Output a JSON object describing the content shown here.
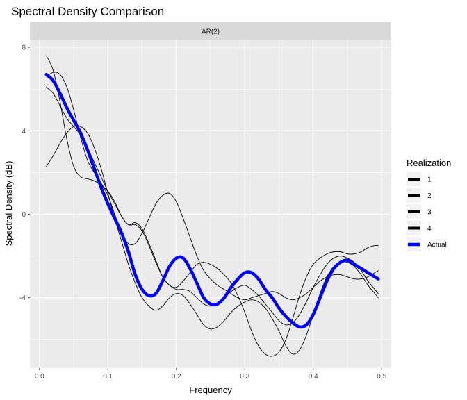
{
  "chart_data": {
    "type": "line",
    "title": "Spectral Density Comparison",
    "facet": "AR(2)",
    "xlabel": "Frequency",
    "ylabel": "Spectral Density (dB)",
    "xlim": [
      -0.014,
      0.514
    ],
    "ylim": [
      -7.37,
      8.37
    ],
    "x_ticks": [
      0.0,
      0.1,
      0.2,
      0.3,
      0.4,
      0.5
    ],
    "x_tick_labels": [
      "0.0",
      "0.1",
      "0.2",
      "0.3",
      "0.4",
      "0.5"
    ],
    "y_ticks": [
      -4,
      0,
      4,
      8
    ],
    "y_tick_labels": [
      "-4",
      "0",
      "4",
      "8"
    ],
    "grid": true,
    "legend_title": "Realization",
    "legend_position": "right",
    "series": [
      {
        "name": "1",
        "color": "#000000",
        "x": [
          0.01,
          0.02,
          0.03,
          0.04,
          0.05,
          0.06,
          0.07,
          0.08,
          0.09,
          0.1,
          0.11,
          0.12,
          0.13,
          0.14,
          0.15,
          0.16,
          0.17,
          0.18,
          0.19,
          0.2,
          0.21,
          0.22,
          0.23,
          0.24,
          0.25,
          0.26,
          0.27,
          0.28,
          0.29,
          0.3,
          0.31,
          0.32,
          0.33,
          0.34,
          0.35,
          0.36,
          0.37,
          0.38,
          0.39,
          0.4,
          0.41,
          0.42,
          0.43,
          0.44,
          0.45,
          0.46,
          0.47,
          0.48,
          0.49,
          0.495
        ],
        "y": [
          6.6,
          6.8,
          6.7,
          6.1,
          5.0,
          3.7,
          2.6,
          2.0,
          1.5,
          0.9,
          0.0,
          -0.9,
          -1.4,
          -1.4,
          -0.9,
          -0.2,
          0.5,
          0.9,
          1.0,
          0.6,
          -0.2,
          -1.1,
          -2.0,
          -2.7,
          -3.1,
          -3.4,
          -3.6,
          -3.8,
          -4.0,
          -4.1,
          -4.0,
          -3.9,
          -3.8,
          -3.7,
          -3.8,
          -4.0,
          -4.1,
          -4.0,
          -3.8,
          -3.5,
          -3.2,
          -3.0,
          -2.9,
          -2.9,
          -3.0,
          -3.1,
          -3.1,
          -3.0,
          -2.8,
          -2.7
        ]
      },
      {
        "name": "2",
        "color": "#000000",
        "x": [
          0.01,
          0.02,
          0.03,
          0.04,
          0.05,
          0.06,
          0.07,
          0.08,
          0.09,
          0.1,
          0.11,
          0.12,
          0.13,
          0.14,
          0.15,
          0.16,
          0.17,
          0.18,
          0.19,
          0.2,
          0.21,
          0.22,
          0.23,
          0.24,
          0.25,
          0.26,
          0.27,
          0.28,
          0.29,
          0.3,
          0.31,
          0.32,
          0.33,
          0.34,
          0.35,
          0.36,
          0.37,
          0.38,
          0.39,
          0.4,
          0.41,
          0.42,
          0.43,
          0.44,
          0.45,
          0.46,
          0.47,
          0.48,
          0.49,
          0.495
        ],
        "y": [
          2.3,
          2.8,
          3.4,
          3.9,
          4.2,
          4.2,
          3.9,
          3.2,
          2.2,
          1.0,
          -0.2,
          -1.3,
          -2.4,
          -3.3,
          -4.0,
          -4.4,
          -4.6,
          -4.4,
          -4.0,
          -3.8,
          -3.9,
          -4.3,
          -4.8,
          -5.3,
          -5.5,
          -5.4,
          -5.1,
          -4.7,
          -4.4,
          -4.2,
          -4.1,
          -4.2,
          -4.5,
          -5.0,
          -5.6,
          -6.3,
          -6.7,
          -6.5,
          -5.8,
          -4.8,
          -3.8,
          -3.0,
          -2.5,
          -2.3,
          -2.3,
          -2.5,
          -2.9,
          -3.4,
          -3.8,
          -4.0
        ]
      },
      {
        "name": "3",
        "color": "#000000",
        "x": [
          0.01,
          0.02,
          0.03,
          0.04,
          0.05,
          0.06,
          0.07,
          0.08,
          0.09,
          0.1,
          0.11,
          0.12,
          0.13,
          0.14,
          0.15,
          0.16,
          0.17,
          0.18,
          0.19,
          0.2,
          0.21,
          0.22,
          0.23,
          0.24,
          0.25,
          0.26,
          0.27,
          0.28,
          0.29,
          0.3,
          0.31,
          0.32,
          0.33,
          0.34,
          0.35,
          0.36,
          0.37,
          0.38,
          0.39,
          0.4,
          0.41,
          0.42,
          0.43,
          0.44,
          0.45,
          0.46,
          0.47,
          0.48,
          0.49,
          0.495
        ],
        "y": [
          7.6,
          6.9,
          5.4,
          3.6,
          2.3,
          1.8,
          1.7,
          1.6,
          1.4,
          1.1,
          0.6,
          -0.1,
          -0.5,
          -0.5,
          -0.8,
          -1.5,
          -2.3,
          -3.0,
          -3.4,
          -3.5,
          -3.2,
          -2.8,
          -2.4,
          -2.3,
          -2.4,
          -2.6,
          -2.9,
          -3.3,
          -3.9,
          -4.7,
          -5.6,
          -6.3,
          -6.7,
          -6.8,
          -6.6,
          -6.0,
          -5.0,
          -3.9,
          -3.0,
          -2.4,
          -2.1,
          -1.9,
          -1.8,
          -1.8,
          -1.9,
          -1.9,
          -1.8,
          -1.6,
          -1.5,
          -1.5
        ]
      },
      {
        "name": "4",
        "color": "#000000",
        "x": [
          0.01,
          0.02,
          0.03,
          0.04,
          0.05,
          0.06,
          0.07,
          0.08,
          0.09,
          0.1,
          0.11,
          0.12,
          0.13,
          0.14,
          0.15,
          0.16,
          0.17,
          0.18,
          0.19,
          0.2,
          0.21,
          0.22,
          0.23,
          0.24,
          0.25,
          0.26,
          0.27,
          0.28,
          0.29,
          0.3,
          0.31,
          0.32,
          0.33,
          0.34,
          0.35,
          0.36,
          0.37,
          0.38,
          0.39,
          0.4,
          0.41,
          0.42,
          0.43,
          0.44,
          0.45,
          0.46,
          0.47,
          0.48,
          0.49,
          0.495
        ],
        "y": [
          6.1,
          5.8,
          5.2,
          4.6,
          4.2,
          3.8,
          3.2,
          2.5,
          1.8,
          1.1,
          0.5,
          -0.1,
          -0.5,
          -0.4,
          -0.7,
          -1.4,
          -2.2,
          -3.0,
          -3.4,
          -3.6,
          -3.6,
          -3.7,
          -4.0,
          -4.3,
          -4.4,
          -4.3,
          -4.0,
          -3.7,
          -3.5,
          -3.4,
          -3.6,
          -3.9,
          -4.3,
          -4.7,
          -5.1,
          -5.3,
          -5.2,
          -4.8,
          -4.2,
          -3.5,
          -2.9,
          -2.4,
          -2.1,
          -2.0,
          -2.1,
          -2.3,
          -2.7,
          -3.2,
          -3.6,
          -3.8
        ]
      },
      {
        "name": "Actual",
        "color": "#0000ff",
        "x": [
          0.01,
          0.02,
          0.03,
          0.04,
          0.05,
          0.06,
          0.07,
          0.08,
          0.09,
          0.1,
          0.11,
          0.12,
          0.13,
          0.14,
          0.15,
          0.16,
          0.17,
          0.18,
          0.19,
          0.2,
          0.21,
          0.22,
          0.23,
          0.24,
          0.25,
          0.26,
          0.27,
          0.28,
          0.29,
          0.3,
          0.31,
          0.32,
          0.33,
          0.34,
          0.35,
          0.36,
          0.37,
          0.38,
          0.39,
          0.4,
          0.41,
          0.42,
          0.43,
          0.44,
          0.45,
          0.46,
          0.47,
          0.48,
          0.49,
          0.495
        ],
        "y": [
          6.7,
          6.4,
          5.8,
          5.1,
          4.5,
          3.9,
          3.1,
          2.2,
          1.3,
          0.5,
          -0.2,
          -0.9,
          -1.8,
          -2.9,
          -3.6,
          -3.9,
          -3.8,
          -3.2,
          -2.5,
          -2.1,
          -2.1,
          -2.6,
          -3.3,
          -4.0,
          -4.3,
          -4.3,
          -4.0,
          -3.5,
          -3.1,
          -2.8,
          -2.8,
          -3.1,
          -3.6,
          -4.0,
          -4.5,
          -4.9,
          -5.2,
          -5.4,
          -5.3,
          -4.8,
          -4.0,
          -3.2,
          -2.6,
          -2.3,
          -2.2,
          -2.4,
          -2.6,
          -2.8,
          -3.0,
          -3.1
        ]
      }
    ]
  }
}
